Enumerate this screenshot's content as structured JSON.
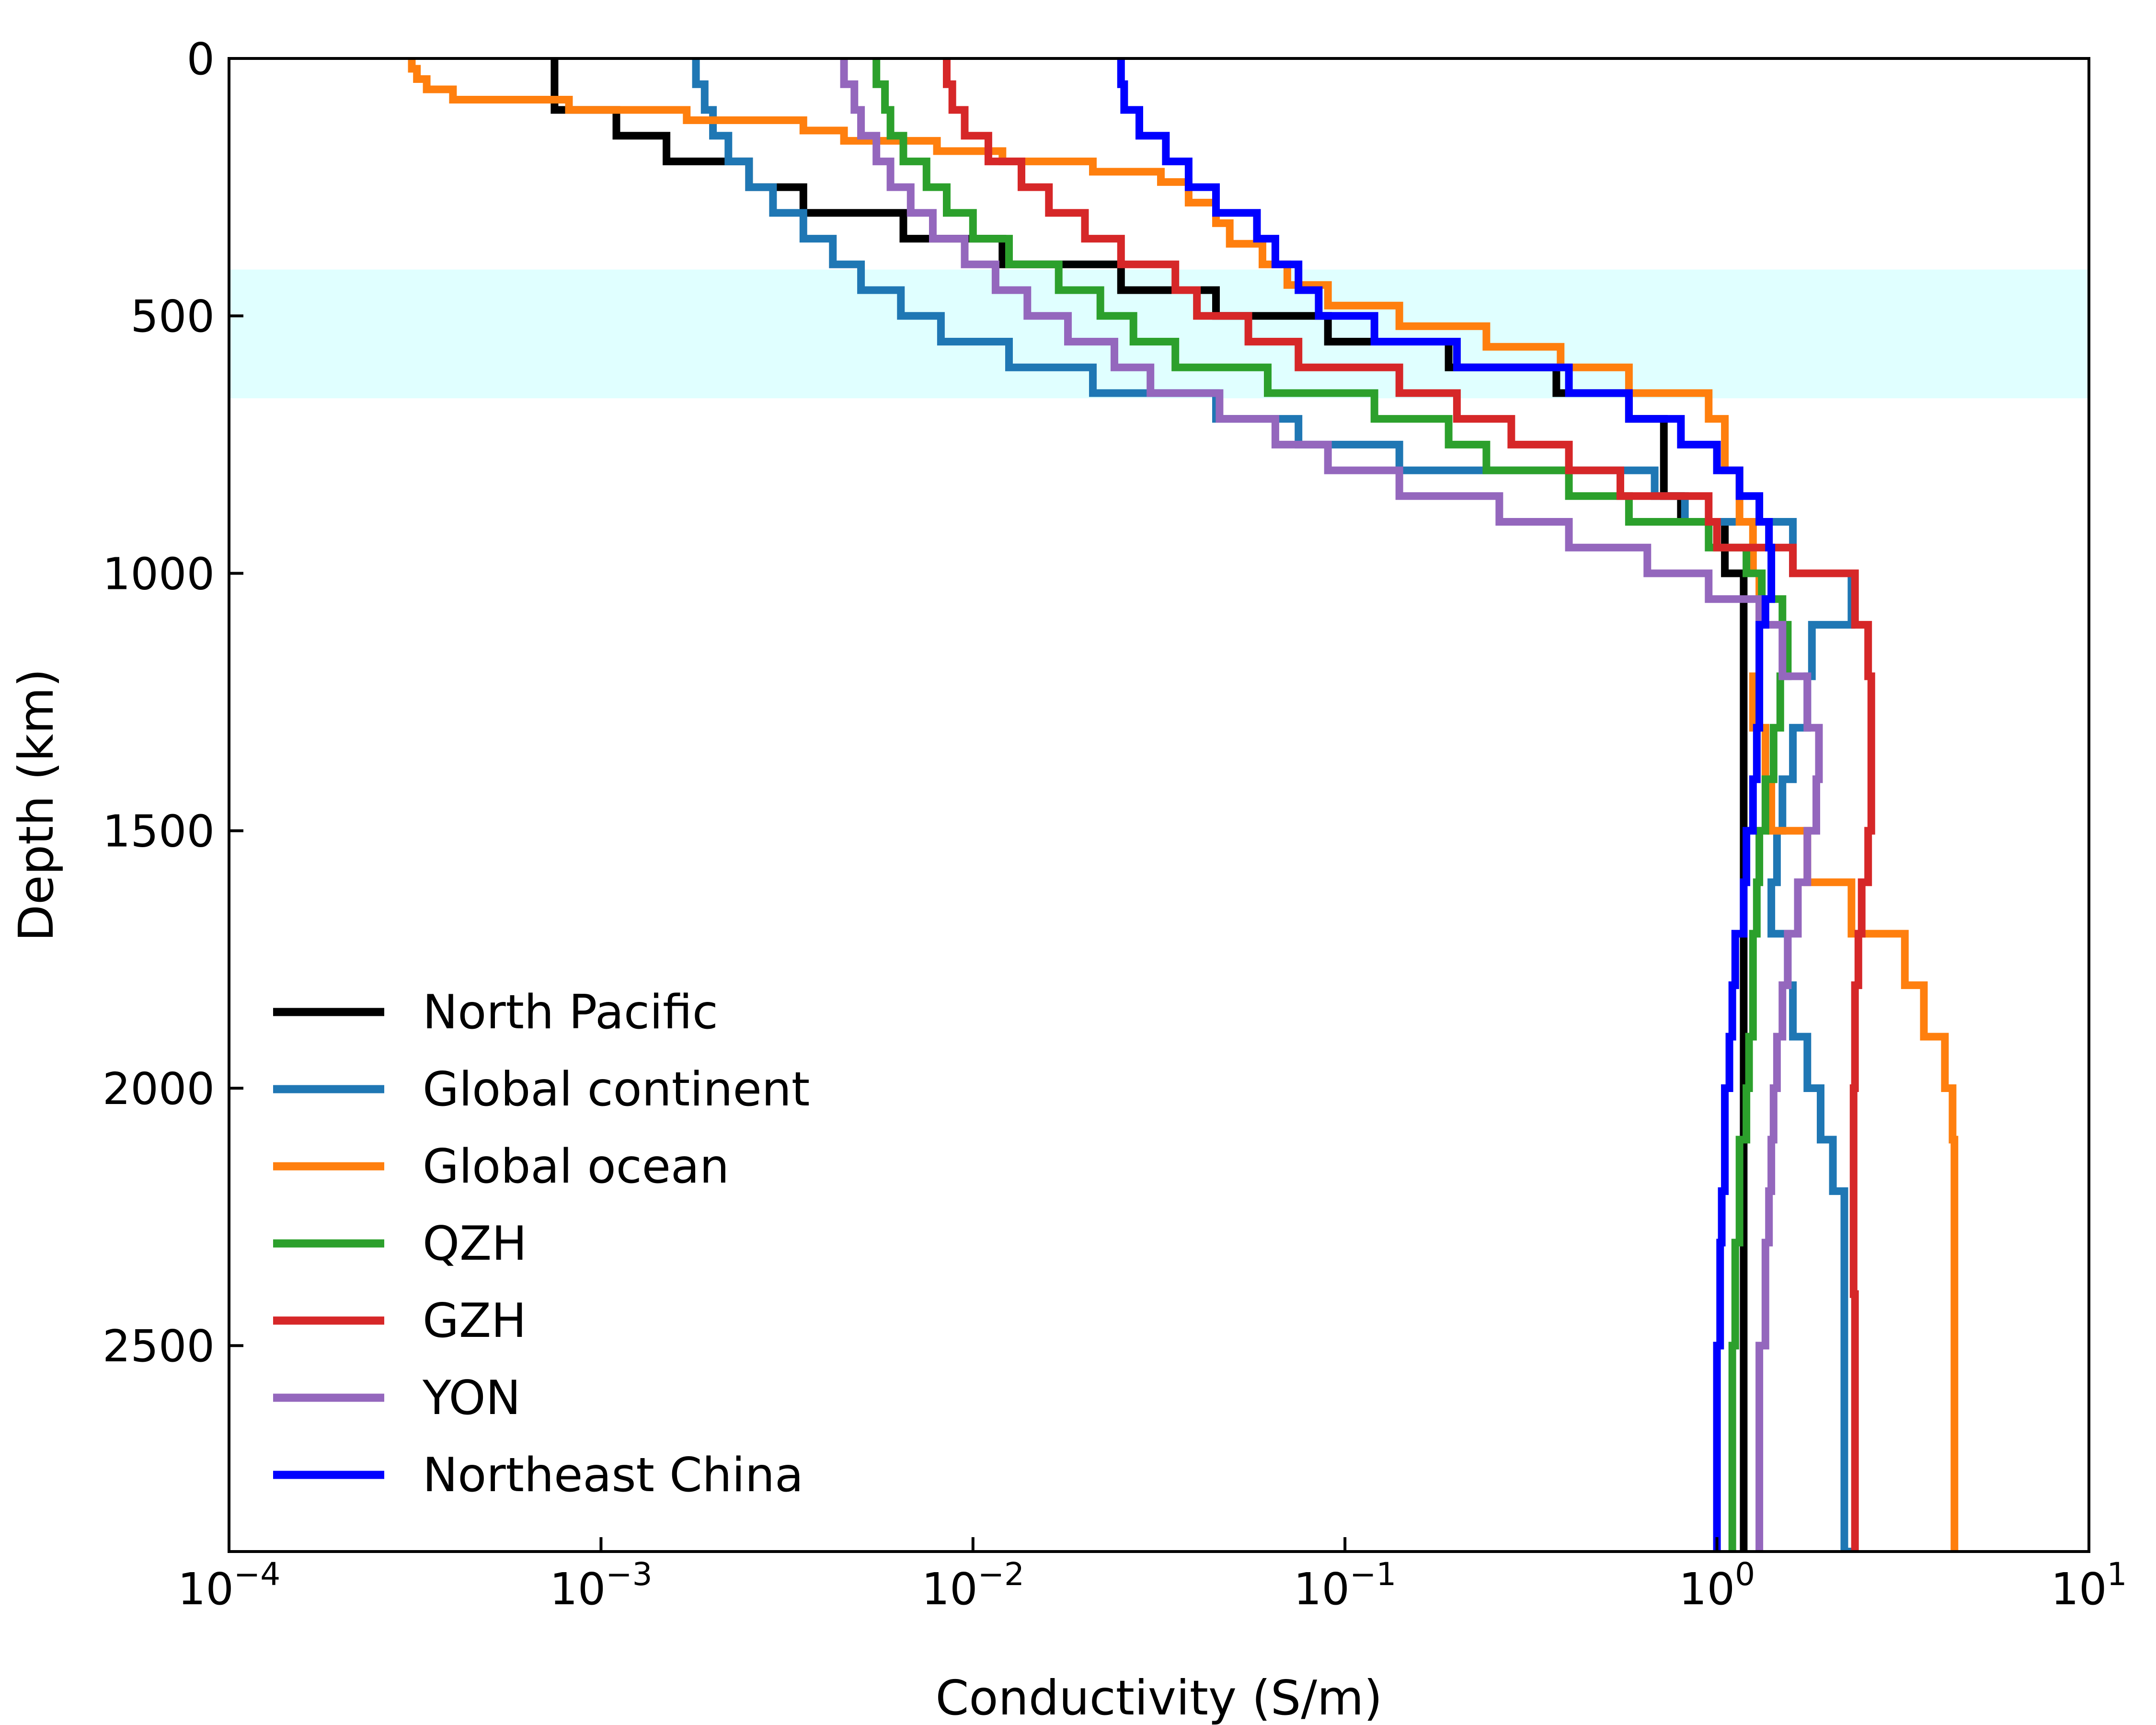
{
  "chart_data": {
    "type": "line",
    "xlabel": "Conductivity (S/m)",
    "ylabel": "Depth (km)",
    "x_scale": "log",
    "xlim": [
      0.0001,
      10
    ],
    "ylim": [
      2900,
      0
    ],
    "x_ticks": [
      {
        "value": 0.0001,
        "base": "10",
        "exp": "−4"
      },
      {
        "value": 0.001,
        "base": "10",
        "exp": "−3"
      },
      {
        "value": 0.01,
        "base": "10",
        "exp": "−2"
      },
      {
        "value": 0.1,
        "base": "10",
        "exp": "−1"
      },
      {
        "value": 1,
        "base": "10",
        "exp": "0"
      },
      {
        "value": 10,
        "base": "10",
        "exp": "1"
      }
    ],
    "y_ticks": [
      {
        "value": 0,
        "label": "0"
      },
      {
        "value": 500,
        "label": "500"
      },
      {
        "value": 1000,
        "label": "1000"
      },
      {
        "value": 1500,
        "label": "1500"
      },
      {
        "value": 2000,
        "label": "2000"
      },
      {
        "value": 2500,
        "label": "2500"
      }
    ],
    "grid": false,
    "legend_position": "lower-left",
    "highlight_band": {
      "depth_from": 410,
      "depth_to": 660,
      "color": "#e0ffff"
    },
    "series": [
      {
        "name": "North Pacific",
        "color": "#000000",
        "points": [
          [
            0,
            0.00075
          ],
          [
            100,
            0.0011
          ],
          [
            150,
            0.0015
          ],
          [
            200,
            0.0025
          ],
          [
            250,
            0.0035
          ],
          [
            300,
            0.0065
          ],
          [
            350,
            0.012
          ],
          [
            400,
            0.025
          ],
          [
            450,
            0.045
          ],
          [
            500,
            0.09
          ],
          [
            550,
            0.19
          ],
          [
            600,
            0.37
          ],
          [
            650,
            0.58
          ],
          [
            700,
            0.72
          ],
          [
            800,
            0.72
          ],
          [
            850,
            0.8
          ],
          [
            900,
            1.05
          ],
          [
            1000,
            1.18
          ],
          [
            1500,
            1.18
          ],
          [
            2900,
            1.2
          ]
        ]
      },
      {
        "name": "Global continent",
        "color": "#1f77b4",
        "points": [
          [
            0,
            0.0018
          ],
          [
            50,
            0.0019
          ],
          [
            100,
            0.002
          ],
          [
            150,
            0.0022
          ],
          [
            200,
            0.0025
          ],
          [
            250,
            0.0029
          ],
          [
            300,
            0.0035
          ],
          [
            350,
            0.0042
          ],
          [
            400,
            0.005
          ],
          [
            450,
            0.0064
          ],
          [
            500,
            0.0082
          ],
          [
            550,
            0.0125
          ],
          [
            600,
            0.021
          ],
          [
            650,
            0.045
          ],
          [
            700,
            0.075
          ],
          [
            750,
            0.14
          ],
          [
            800,
            0.68
          ],
          [
            850,
            0.82
          ],
          [
            900,
            1.6
          ],
          [
            1000,
            2.3
          ],
          [
            1100,
            1.8
          ],
          [
            1200,
            1.75
          ],
          [
            1300,
            1.6
          ],
          [
            1400,
            1.5
          ],
          [
            1500,
            1.45
          ],
          [
            1600,
            1.4
          ],
          [
            1700,
            1.55
          ],
          [
            1800,
            1.6
          ],
          [
            1900,
            1.75
          ],
          [
            2000,
            1.9
          ],
          [
            2100,
            2.05
          ],
          [
            2200,
            2.2
          ],
          [
            2900,
            2.35
          ]
        ]
      },
      {
        "name": "Global ocean",
        "color": "#ff7f0e",
        "points": [
          [
            0,
            0.00031
          ],
          [
            20,
            0.00032
          ],
          [
            40,
            0.00034
          ],
          [
            60,
            0.0004
          ],
          [
            80,
            0.00082
          ],
          [
            100,
            0.0017
          ],
          [
            120,
            0.0035
          ],
          [
            140,
            0.0045
          ],
          [
            160,
            0.008
          ],
          [
            180,
            0.012
          ],
          [
            200,
            0.021
          ],
          [
            220,
            0.032
          ],
          [
            240,
            0.038
          ],
          [
            280,
            0.045
          ],
          [
            320,
            0.049
          ],
          [
            360,
            0.06
          ],
          [
            400,
            0.07
          ],
          [
            440,
            0.09
          ],
          [
            480,
            0.14
          ],
          [
            520,
            0.24
          ],
          [
            560,
            0.38
          ],
          [
            600,
            0.58
          ],
          [
            650,
            0.95
          ],
          [
            700,
            1.05
          ],
          [
            800,
            1.15
          ],
          [
            900,
            1.25
          ],
          [
            1000,
            1.3
          ],
          [
            1100,
            1.3
          ],
          [
            1200,
            1.25
          ],
          [
            1300,
            1.35
          ],
          [
            1400,
            1.4
          ],
          [
            1500,
            1.75
          ],
          [
            1600,
            2.3
          ],
          [
            1700,
            3.2
          ],
          [
            1800,
            3.6
          ],
          [
            1900,
            4.1
          ],
          [
            2000,
            4.3
          ],
          [
            2100,
            4.35
          ],
          [
            2200,
            4.35
          ],
          [
            2900,
            4.35
          ]
        ]
      },
      {
        "name": "QZH",
        "color": "#2ca02c",
        "points": [
          [
            0,
            0.0055
          ],
          [
            50,
            0.0058
          ],
          [
            100,
            0.006
          ],
          [
            150,
            0.0065
          ],
          [
            200,
            0.0075
          ],
          [
            250,
            0.0085
          ],
          [
            300,
            0.01
          ],
          [
            350,
            0.0125
          ],
          [
            400,
            0.017
          ],
          [
            450,
            0.022
          ],
          [
            500,
            0.027
          ],
          [
            550,
            0.035
          ],
          [
            600,
            0.062
          ],
          [
            650,
            0.12
          ],
          [
            700,
            0.19
          ],
          [
            750,
            0.24
          ],
          [
            800,
            0.4
          ],
          [
            850,
            0.58
          ],
          [
            900,
            0.95
          ],
          [
            950,
            1.2
          ],
          [
            1000,
            1.32
          ],
          [
            1050,
            1.5
          ],
          [
            1100,
            1.55
          ],
          [
            1200,
            1.48
          ],
          [
            1300,
            1.42
          ],
          [
            1400,
            1.35
          ],
          [
            1500,
            1.3
          ],
          [
            1600,
            1.28
          ],
          [
            1700,
            1.25
          ],
          [
            1800,
            1.25
          ],
          [
            1900,
            1.22
          ],
          [
            2000,
            1.2
          ],
          [
            2100,
            1.15
          ],
          [
            2300,
            1.12
          ],
          [
            2500,
            1.1
          ],
          [
            2900,
            1.08
          ]
        ]
      },
      {
        "name": "GZH",
        "color": "#d62728",
        "points": [
          [
            0,
            0.0085
          ],
          [
            50,
            0.0088
          ],
          [
            100,
            0.0095
          ],
          [
            150,
            0.011
          ],
          [
            200,
            0.0135
          ],
          [
            250,
            0.016
          ],
          [
            300,
            0.02
          ],
          [
            350,
            0.025
          ],
          [
            400,
            0.035
          ],
          [
            450,
            0.04
          ],
          [
            500,
            0.055
          ],
          [
            550,
            0.075
          ],
          [
            600,
            0.14
          ],
          [
            650,
            0.2
          ],
          [
            700,
            0.28
          ],
          [
            750,
            0.4
          ],
          [
            800,
            0.55
          ],
          [
            850,
            0.95
          ],
          [
            900,
            1.0
          ],
          [
            950,
            1.6
          ],
          [
            1000,
            2.35
          ],
          [
            1100,
            2.55
          ],
          [
            1200,
            2.6
          ],
          [
            1400,
            2.6
          ],
          [
            1500,
            2.55
          ],
          [
            1600,
            2.45
          ],
          [
            1700,
            2.4
          ],
          [
            1800,
            2.35
          ],
          [
            2000,
            2.33
          ],
          [
            2200,
            2.33
          ],
          [
            2400,
            2.35
          ],
          [
            2900,
            2.38
          ]
        ]
      },
      {
        "name": "YON",
        "color": "#9467bd",
        "points": [
          [
            0,
            0.0045
          ],
          [
            50,
            0.0048
          ],
          [
            100,
            0.005
          ],
          [
            150,
            0.0055
          ],
          [
            200,
            0.006
          ],
          [
            250,
            0.0068
          ],
          [
            300,
            0.0078
          ],
          [
            350,
            0.0095
          ],
          [
            400,
            0.0115
          ],
          [
            450,
            0.014
          ],
          [
            500,
            0.018
          ],
          [
            550,
            0.024
          ],
          [
            600,
            0.03
          ],
          [
            650,
            0.046
          ],
          [
            700,
            0.065
          ],
          [
            750,
            0.09
          ],
          [
            800,
            0.14
          ],
          [
            850,
            0.26
          ],
          [
            900,
            0.4
          ],
          [
            950,
            0.65
          ],
          [
            1000,
            0.95
          ],
          [
            1050,
            1.3
          ],
          [
            1100,
            1.5
          ],
          [
            1200,
            1.75
          ],
          [
            1300,
            1.88
          ],
          [
            1400,
            1.85
          ],
          [
            1500,
            1.75
          ],
          [
            1600,
            1.65
          ],
          [
            1700,
            1.55
          ],
          [
            1800,
            1.5
          ],
          [
            1900,
            1.45
          ],
          [
            2000,
            1.42
          ],
          [
            2100,
            1.4
          ],
          [
            2200,
            1.38
          ],
          [
            2300,
            1.35
          ],
          [
            2500,
            1.3
          ],
          [
            2900,
            1.28
          ]
        ]
      },
      {
        "name": "Northeast China",
        "color": "#0000ff",
        "points": [
          [
            0,
            0.025
          ],
          [
            50,
            0.0255
          ],
          [
            100,
            0.028
          ],
          [
            150,
            0.033
          ],
          [
            200,
            0.038
          ],
          [
            250,
            0.045
          ],
          [
            300,
            0.058
          ],
          [
            350,
            0.065
          ],
          [
            400,
            0.075
          ],
          [
            450,
            0.085
          ],
          [
            500,
            0.12
          ],
          [
            550,
            0.2
          ],
          [
            600,
            0.4
          ],
          [
            650,
            0.58
          ],
          [
            700,
            0.8
          ],
          [
            750,
            1.0
          ],
          [
            800,
            1.15
          ],
          [
            850,
            1.3
          ],
          [
            900,
            1.38
          ],
          [
            950,
            1.4
          ],
          [
            1000,
            1.4
          ],
          [
            1050,
            1.35
          ],
          [
            1100,
            1.3
          ],
          [
            1200,
            1.3
          ],
          [
            1300,
            1.28
          ],
          [
            1400,
            1.25
          ],
          [
            1500,
            1.2
          ],
          [
            1600,
            1.18
          ],
          [
            1700,
            1.12
          ],
          [
            1800,
            1.1
          ],
          [
            1900,
            1.08
          ],
          [
            2000,
            1.05
          ],
          [
            2100,
            1.05
          ],
          [
            2200,
            1.03
          ],
          [
            2300,
            1.02
          ],
          [
            2500,
            1.0
          ],
          [
            2900,
            0.98
          ]
        ]
      }
    ]
  }
}
